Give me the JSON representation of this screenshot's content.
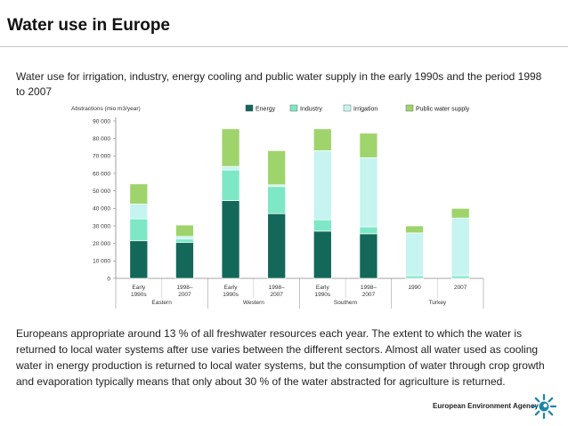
{
  "page": {
    "title": "Water use in Europe",
    "subtitle": "Water use for irrigation, industry, energy cooling and public water supply in the early 1990s and the period 1998 to 2007",
    "body_text": "Europeans appropriate around 13 % of all freshwater resources each year. The extent to which the water is returned to local water systems after use varies between the different sectors. Almost all water used as cooling water in energy production is returned to local water systems, but the consumption of water through crop growth and evaporation typically means that only about 30 % of the water abstracted for agriculture is returned.",
    "footer_org": "European Environment Agency"
  },
  "colors": {
    "energy": "#13685a",
    "industry": "#7ee8c6",
    "irrigation": "#c6f4f0",
    "public_supply": "#9fd46c"
  },
  "chart_data": {
    "type": "bar",
    "stacked": true,
    "ylabel": "Abstractions (mio m3/year)",
    "ylim": [
      0,
      90000
    ],
    "yticks": [
      "0",
      "10 000",
      "20 000",
      "30 000",
      "40 000",
      "50 000",
      "60 000",
      "70 000",
      "80 000",
      "90 000"
    ],
    "grid": false,
    "legend_position": "top",
    "categories": [
      {
        "label1": "Early",
        "label2": "1990s"
      },
      {
        "label1": "1998–",
        "label2": "2007"
      },
      {
        "label1": "Early",
        "label2": "1990s"
      },
      {
        "label1": "1998–",
        "label2": "2007"
      },
      {
        "label1": "Early",
        "label2": "1990s"
      },
      {
        "label1": "1998–",
        "label2": "2007"
      },
      {
        "label1": "1990",
        "label2": ""
      },
      {
        "label1": "2007",
        "label2": ""
      }
    ],
    "groups": [
      {
        "name": "Eastern",
        "start": 0,
        "end": 1
      },
      {
        "name": "Western",
        "start": 2,
        "end": 3
      },
      {
        "name": "Southern",
        "start": 4,
        "end": 5
      },
      {
        "name": "Turkey",
        "start": 6,
        "end": 7
      }
    ],
    "series": [
      {
        "name": "Energy",
        "color_key": "energy",
        "values": [
          21500,
          20500,
          44500,
          37000,
          27000,
          25500,
          0,
          0
        ]
      },
      {
        "name": "Industry",
        "color_key": "industry",
        "values": [
          12500,
          2000,
          17500,
          15500,
          6500,
          4000,
          1500,
          1500
        ]
      },
      {
        "name": "Irrigation",
        "color_key": "irrigation",
        "values": [
          8500,
          1500,
          2000,
          1000,
          39500,
          39500,
          24500,
          33000
        ]
      },
      {
        "name": "Public water supply",
        "color_key": "public_supply",
        "values": [
          11500,
          6500,
          21500,
          19500,
          12500,
          14000,
          4000,
          5500
        ]
      }
    ]
  }
}
